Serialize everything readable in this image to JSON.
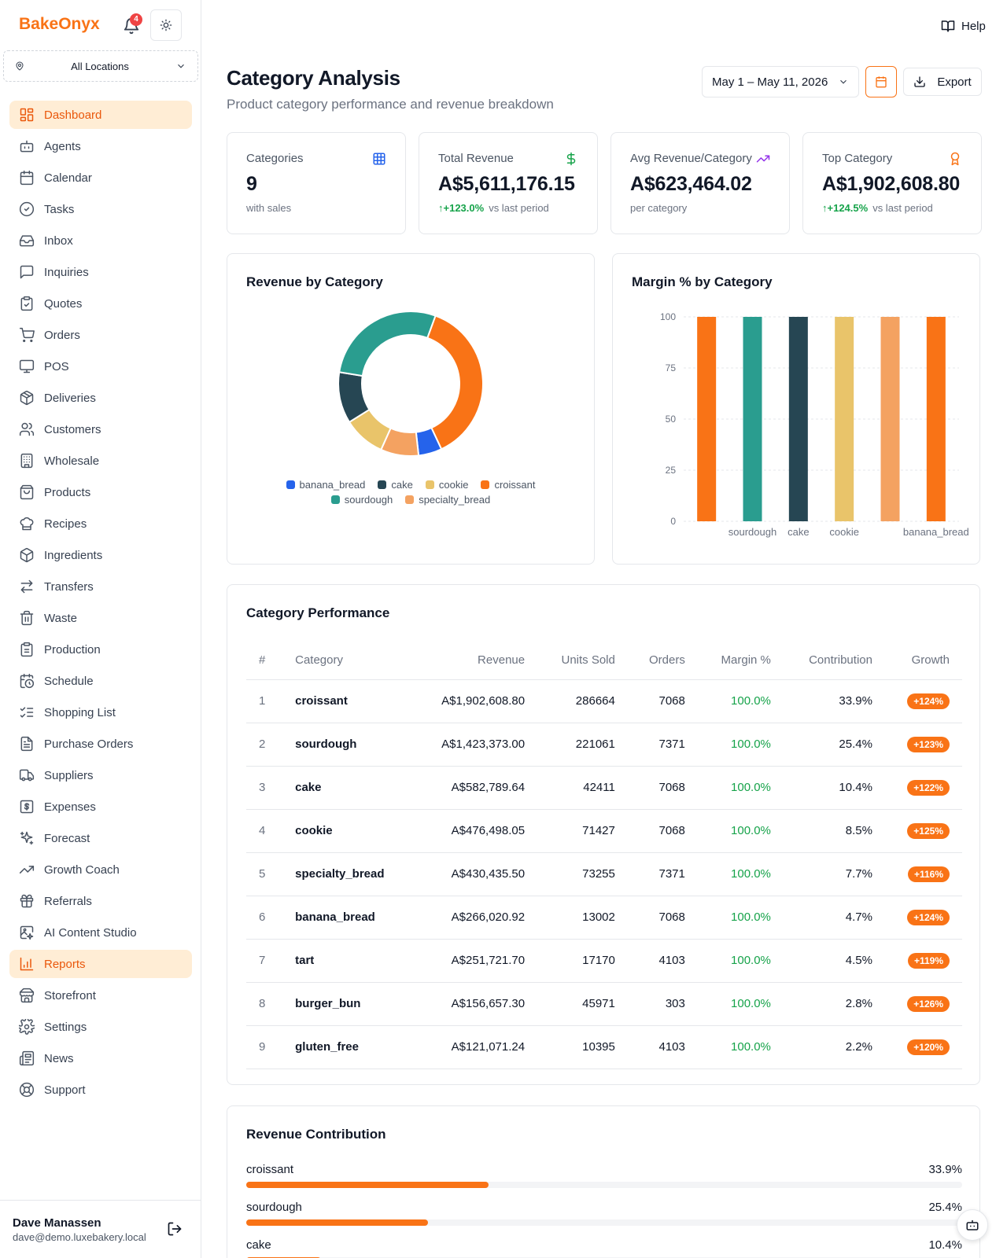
{
  "app": {
    "brand": "BakeOnyx",
    "notification_count": "4"
  },
  "location_select": {
    "value": "All Locations"
  },
  "nav": [
    {
      "label": "Dashboard",
      "icon": "dashboard-icon",
      "active": true
    },
    {
      "label": "Agents",
      "icon": "bot-icon"
    },
    {
      "label": "Calendar",
      "icon": "calendar-icon"
    },
    {
      "label": "Tasks",
      "icon": "check-circle-icon"
    },
    {
      "label": "Inbox",
      "icon": "inbox-icon"
    },
    {
      "label": "Inquiries",
      "icon": "message-icon"
    },
    {
      "label": "Quotes",
      "icon": "clipboard-check-icon"
    },
    {
      "label": "Orders",
      "icon": "cart-icon"
    },
    {
      "label": "POS",
      "icon": "monitor-icon"
    },
    {
      "label": "Deliveries",
      "icon": "package-icon"
    },
    {
      "label": "Customers",
      "icon": "users-icon"
    },
    {
      "label": "Wholesale",
      "icon": "building-icon"
    },
    {
      "label": "Products",
      "icon": "shopping-bag-icon"
    },
    {
      "label": "Recipes",
      "icon": "chef-hat-icon"
    },
    {
      "label": "Ingredients",
      "icon": "box-icon"
    },
    {
      "label": "Transfers",
      "icon": "arrows-icon"
    },
    {
      "label": "Waste",
      "icon": "trash-icon"
    },
    {
      "label": "Production",
      "icon": "clipboard-icon"
    },
    {
      "label": "Schedule",
      "icon": "calendar-clock-icon"
    },
    {
      "label": "Shopping List",
      "icon": "list-checks-icon"
    },
    {
      "label": "Purchase Orders",
      "icon": "file-text-icon"
    },
    {
      "label": "Suppliers",
      "icon": "truck-icon"
    },
    {
      "label": "Expenses",
      "icon": "dollar-square-icon"
    },
    {
      "label": "Forecast",
      "icon": "sparkles-icon"
    },
    {
      "label": "Growth Coach",
      "icon": "trending-up-icon"
    },
    {
      "label": "Referrals",
      "icon": "gift-icon"
    },
    {
      "label": "AI Content Studio",
      "icon": "image-sparkle-icon"
    },
    {
      "label": "Reports",
      "icon": "bar-chart-icon",
      "active": true
    },
    {
      "label": "Storefront",
      "icon": "store-icon"
    },
    {
      "label": "Settings",
      "icon": "gear-icon"
    },
    {
      "label": "News",
      "icon": "newspaper-icon"
    },
    {
      "label": "Support",
      "icon": "lifebuoy-icon"
    }
  ],
  "user": {
    "name": "Dave Manassen",
    "email": "dave@demo.luxebakery.local"
  },
  "header": {
    "help": "Help",
    "title": "Category Analysis",
    "subtitle": "Product category performance and revenue breakdown",
    "date_range": "May 1 – May 11, 2026",
    "export": "Export"
  },
  "kpis": [
    {
      "label": "Categories",
      "value": "9",
      "change": "",
      "sub": "with sales",
      "icon": "grid-icon",
      "icon_color": "#2563eb"
    },
    {
      "label": "Total Revenue",
      "value": "A$5,611,176.15",
      "change": "↑+123.0%",
      "sub": "vs last period",
      "icon": "dollar-icon",
      "icon_color": "#16a34a"
    },
    {
      "label": "Avg Revenue/Category",
      "value": "A$623,464.02",
      "change": "",
      "sub": "per category",
      "icon": "trending-up-icon",
      "icon_color": "#9333ea"
    },
    {
      "label": "Top Category",
      "value": "A$1,902,608.80",
      "change": "↑+124.5%",
      "sub": "vs last period",
      "icon": "award-icon",
      "icon_color": "#f97316"
    }
  ],
  "revenue_chart": {
    "title": "Revenue by Category",
    "legend": [
      "banana_bread",
      "cake",
      "cookie",
      "croissant",
      "sourdough",
      "specialty_bread"
    ]
  },
  "margin_chart": {
    "title": "Margin % by Category"
  },
  "chart_data": [
    {
      "type": "pie",
      "title": "Revenue by Category",
      "donut": true,
      "slices": [
        {
          "name": "croissant",
          "value": 1902608.8,
          "color": "#f97316"
        },
        {
          "name": "banana_bread",
          "value": 266020.92,
          "color": "#2563eb"
        },
        {
          "name": "specialty_bread",
          "value": 430435.5,
          "color": "#f4a261"
        },
        {
          "name": "cookie",
          "value": 476498.05,
          "color": "#e9c46a"
        },
        {
          "name": "cake",
          "value": 582789.64,
          "color": "#264653"
        },
        {
          "name": "sourdough",
          "value": 1423373.0,
          "color": "#2a9d8f"
        }
      ],
      "legend_placement": "bottom"
    },
    {
      "type": "bar",
      "title": "Margin % by Category",
      "categories": [
        "croissant",
        "sourdough",
        "cake",
        "cookie",
        "specialty_bread",
        "banana_bread"
      ],
      "x_tick_labels_shown": [
        "",
        "sourdough",
        "cake",
        "cookie",
        "",
        "banana_bread"
      ],
      "values": [
        100,
        100,
        100,
        100,
        100,
        100
      ],
      "colors": [
        "#f97316",
        "#2a9d8f",
        "#264653",
        "#e9c46a",
        "#f4a261",
        "#f97316"
      ],
      "yticks": [
        "0",
        "25",
        "50",
        "75",
        "100"
      ],
      "ylim": [
        0,
        100
      ],
      "grid": true
    }
  ],
  "performance": {
    "title": "Category Performance",
    "columns": [
      "#",
      "Category",
      "Revenue",
      "Units Sold",
      "Orders",
      "Margin %",
      "Contribution",
      "Growth"
    ],
    "rows": [
      [
        "1",
        "croissant",
        "A$1,902,608.80",
        "286664",
        "7068",
        "100.0%",
        "33.9%",
        "+124%"
      ],
      [
        "2",
        "sourdough",
        "A$1,423,373.00",
        "221061",
        "7371",
        "100.0%",
        "25.4%",
        "+123%"
      ],
      [
        "3",
        "cake",
        "A$582,789.64",
        "42411",
        "7068",
        "100.0%",
        "10.4%",
        "+122%"
      ],
      [
        "4",
        "cookie",
        "A$476,498.05",
        "71427",
        "7068",
        "100.0%",
        "8.5%",
        "+125%"
      ],
      [
        "5",
        "specialty_bread",
        "A$430,435.50",
        "73255",
        "7371",
        "100.0%",
        "7.7%",
        "+116%"
      ],
      [
        "6",
        "banana_bread",
        "A$266,020.92",
        "13002",
        "7068",
        "100.0%",
        "4.7%",
        "+124%"
      ],
      [
        "7",
        "tart",
        "A$251,721.70",
        "17170",
        "4103",
        "100.0%",
        "4.5%",
        "+119%"
      ],
      [
        "8",
        "burger_bun",
        "A$156,657.30",
        "45971",
        "303",
        "100.0%",
        "2.8%",
        "+126%"
      ],
      [
        "9",
        "gluten_free",
        "A$121,071.24",
        "10395",
        "4103",
        "100.0%",
        "2.2%",
        "+120%"
      ]
    ]
  },
  "contribution": {
    "title": "Revenue Contribution",
    "items": [
      {
        "label": "croissant",
        "pct": "33.9%",
        "fraction": 0.339
      },
      {
        "label": "sourdough",
        "pct": "25.4%",
        "fraction": 0.254
      },
      {
        "label": "cake",
        "pct": "10.4%",
        "fraction": 0.104
      }
    ]
  }
}
